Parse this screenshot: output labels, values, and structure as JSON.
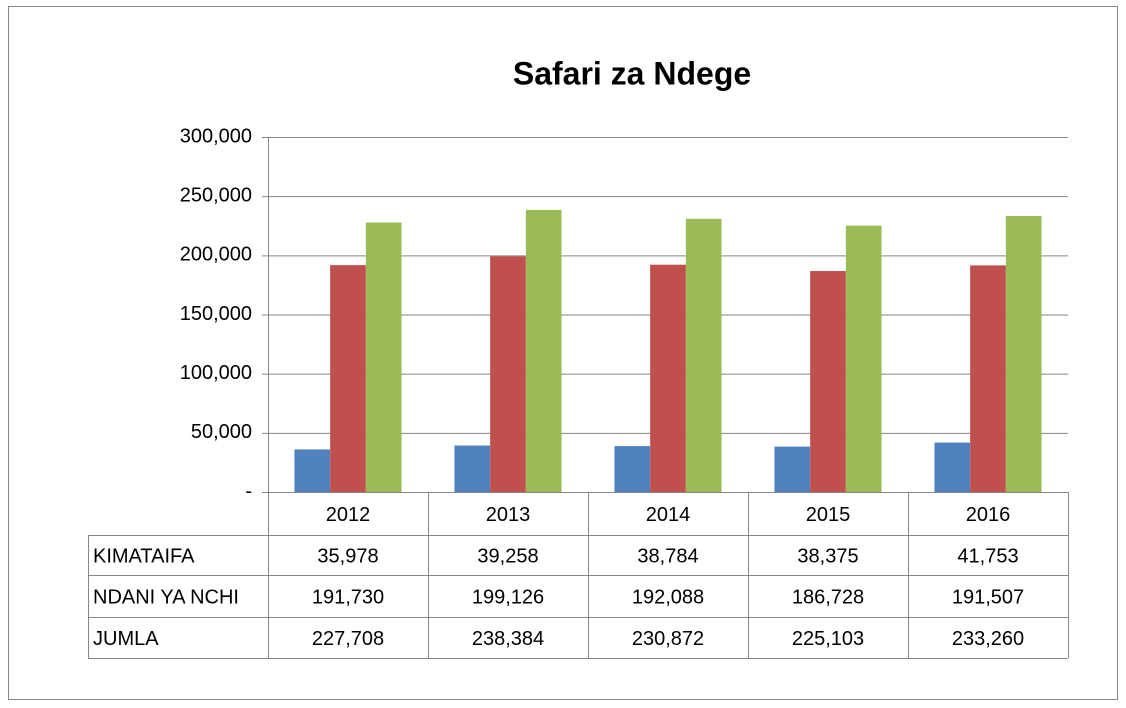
{
  "chart_data": {
    "type": "bar",
    "title": "Safari za Ndege",
    "categories": [
      "2012",
      "2013",
      "2014",
      "2015",
      "2016"
    ],
    "series": [
      {
        "name": "KIMATAIFA",
        "color": "#4f81bd",
        "values": [
          35978,
          39258,
          38784,
          38375,
          41753
        ],
        "value_labels": [
          "35,978",
          "39,258",
          "38,784",
          "38,375",
          "41,753"
        ]
      },
      {
        "name": "NDANI YA NCHI",
        "color": "#c0504d",
        "values": [
          191730,
          199126,
          192088,
          186728,
          191507
        ],
        "value_labels": [
          "191,730",
          "199,126",
          "192,088",
          "186,728",
          "191,507"
        ]
      },
      {
        "name": "JUMLA",
        "color": "#9bbb59",
        "values": [
          227708,
          238384,
          230872,
          225103,
          233260
        ],
        "value_labels": [
          "227,708",
          "238,384",
          "230,872",
          "225,103",
          "233,260"
        ]
      }
    ],
    "ylim": [
      0,
      300000
    ],
    "yticks": [
      {
        "value": 0,
        "label": "-"
      },
      {
        "value": 50000,
        "label": "50,000"
      },
      {
        "value": 100000,
        "label": "100,000"
      },
      {
        "value": 150000,
        "label": "150,000"
      },
      {
        "value": 200000,
        "label": "200,000"
      },
      {
        "value": 250000,
        "label": "250,000"
      },
      {
        "value": 300000,
        "label": "300,000"
      }
    ],
    "grid": true
  }
}
